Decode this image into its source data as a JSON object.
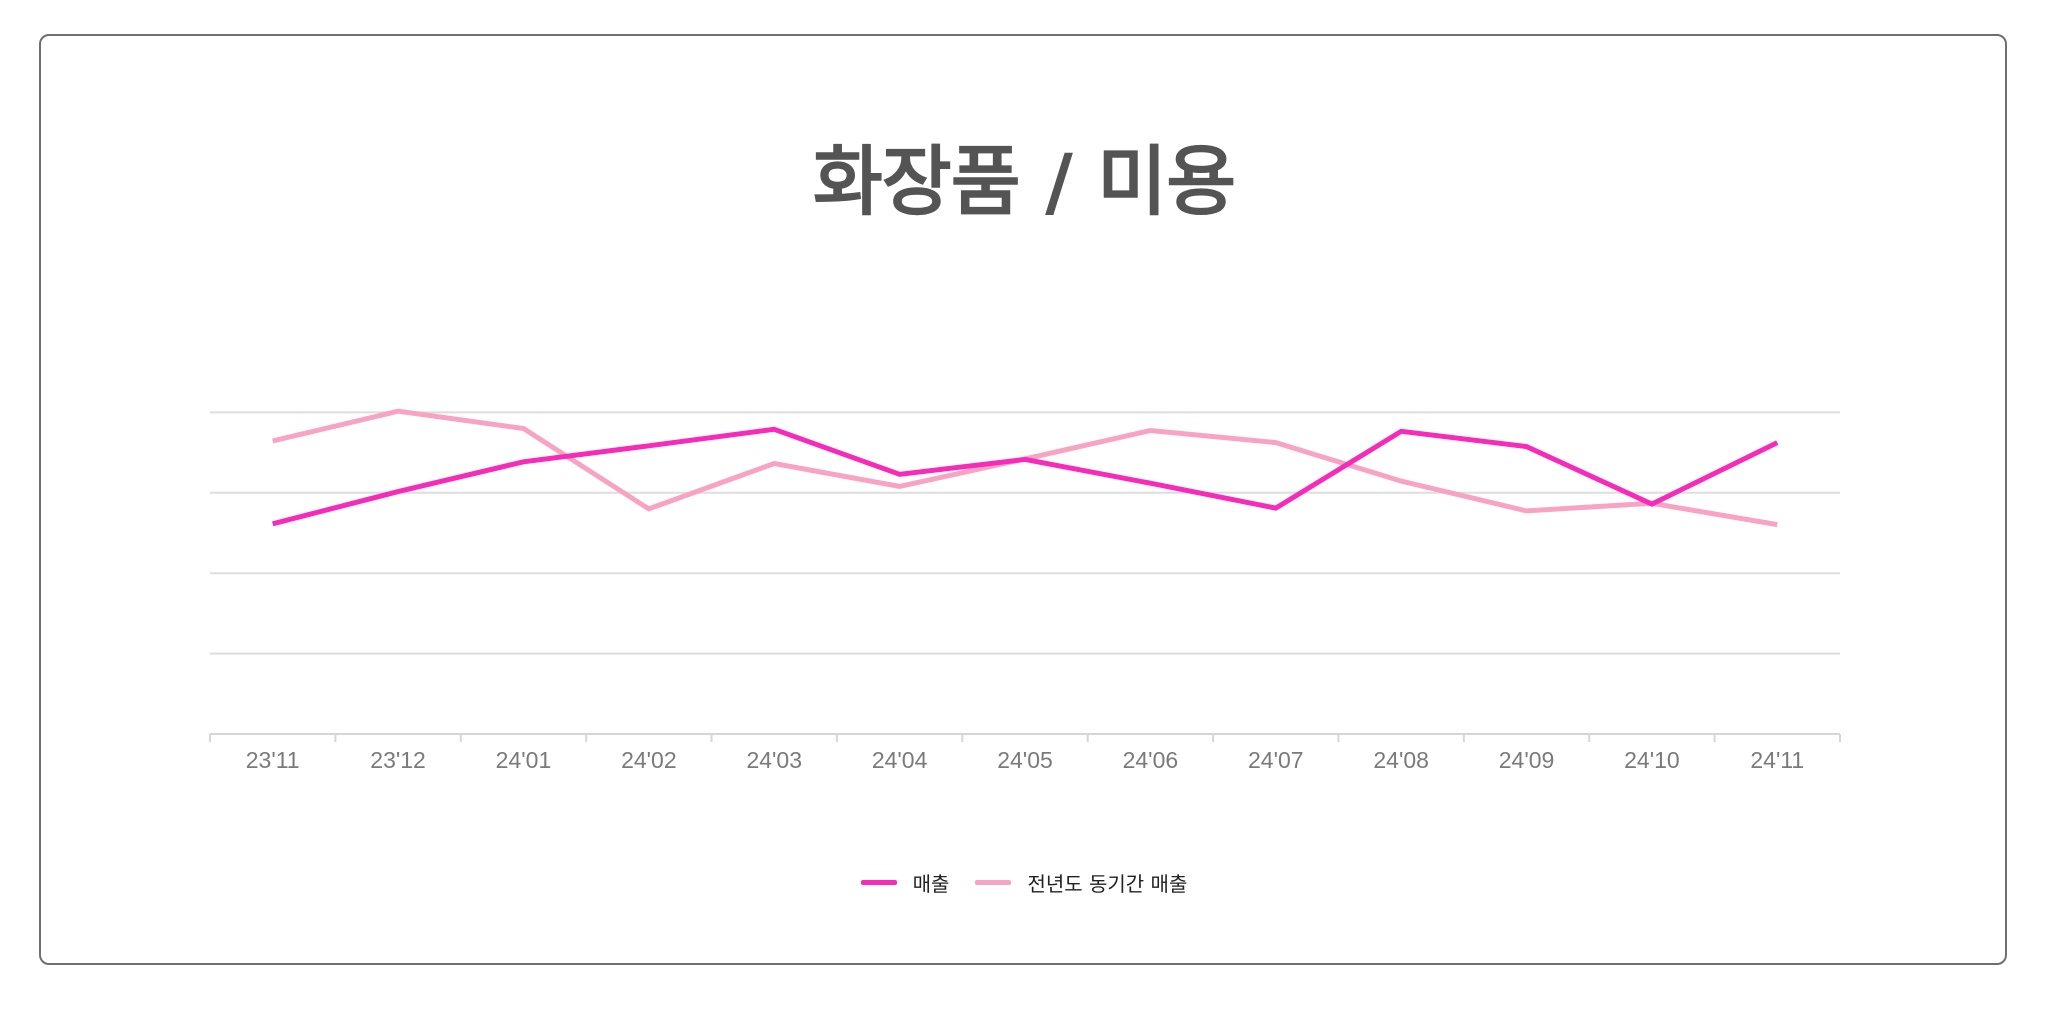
{
  "chart_data": {
    "type": "line",
    "title": "화장품 / 미용",
    "xlabel": "",
    "ylabel": "",
    "categories": [
      "23'11",
      "23'12",
      "24'01",
      "24'02",
      "24'03",
      "24'04",
      "24'05",
      "24'06",
      "24'07",
      "24'08",
      "24'09",
      "24'10",
      "24'11"
    ],
    "ylim": [
      0,
      100
    ],
    "grid": true,
    "legend_position": "bottom-center",
    "series": [
      {
        "name": "매출",
        "color": "#f72aba",
        "values": [
          52.3,
          60.3,
          67.7,
          71.7,
          75.8,
          64.6,
          68.3,
          62.4,
          56.2,
          75.3,
          71.5,
          57.2,
          72.5
        ]
      },
      {
        "name": "전년도 동기간 매출",
        "color": "#f9a3c3",
        "values": [
          72.9,
          80.3,
          76.0,
          56.0,
          67.3,
          61.6,
          68.4,
          75.5,
          72.5,
          62.9,
          55.5,
          57.4,
          52.1
        ]
      }
    ]
  }
}
